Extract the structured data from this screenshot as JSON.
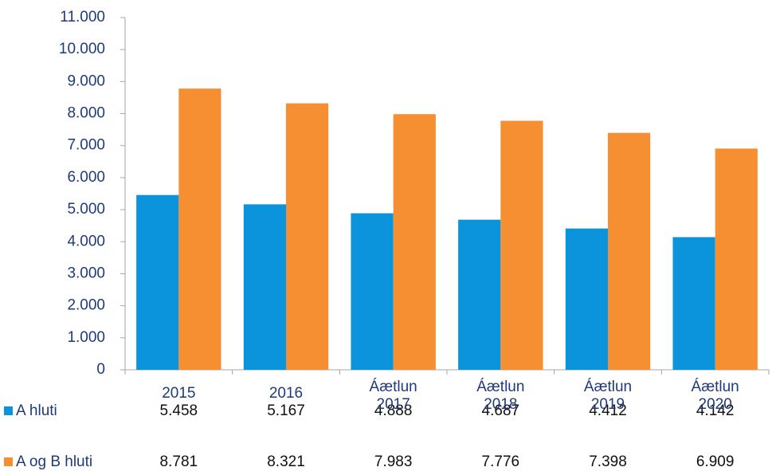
{
  "chart_data": {
    "type": "bar",
    "categories": [
      "2015",
      "2016",
      "Áætlun\n2017",
      "Áætlun\n2018",
      "Áætlun\n2019",
      "Áætlun\n2020"
    ],
    "series": [
      {
        "name": "A hluti",
        "color": "#0b93dc",
        "values": [
          5458,
          5167,
          4888,
          4687,
          4412,
          4142
        ],
        "value_labels": [
          "5.458",
          "5.167",
          "4.888",
          "4.687",
          "4.412",
          "4.142"
        ]
      },
      {
        "name": "A og B hluti",
        "color": "#f68f31",
        "values": [
          8781,
          8321,
          7983,
          7776,
          7398,
          6909
        ],
        "value_labels": [
          "8.781",
          "8.321",
          "7.983",
          "7.776",
          "7.398",
          "6.909"
        ]
      }
    ],
    "ylim": [
      0,
      11000
    ],
    "yticks": [
      0,
      {
        "value": 1000,
        "label": "1.000"
      },
      {
        "value": 2000,
        "label": "2.000"
      },
      {
        "value": 3000,
        "label": "3.000"
      },
      {
        "value": 4000,
        "label": "4.000"
      },
      {
        "value": 5000,
        "label": "5.000"
      },
      {
        "value": 6000,
        "label": "6.000"
      },
      {
        "value": 7000,
        "label": "7.000"
      },
      {
        "value": 8000,
        "label": "8.000"
      },
      {
        "value": 9000,
        "label": "9.000"
      },
      {
        "value": 10000,
        "label": "10.000"
      },
      {
        "value": 11000,
        "label": "11.000"
      }
    ],
    "grid": false
  }
}
